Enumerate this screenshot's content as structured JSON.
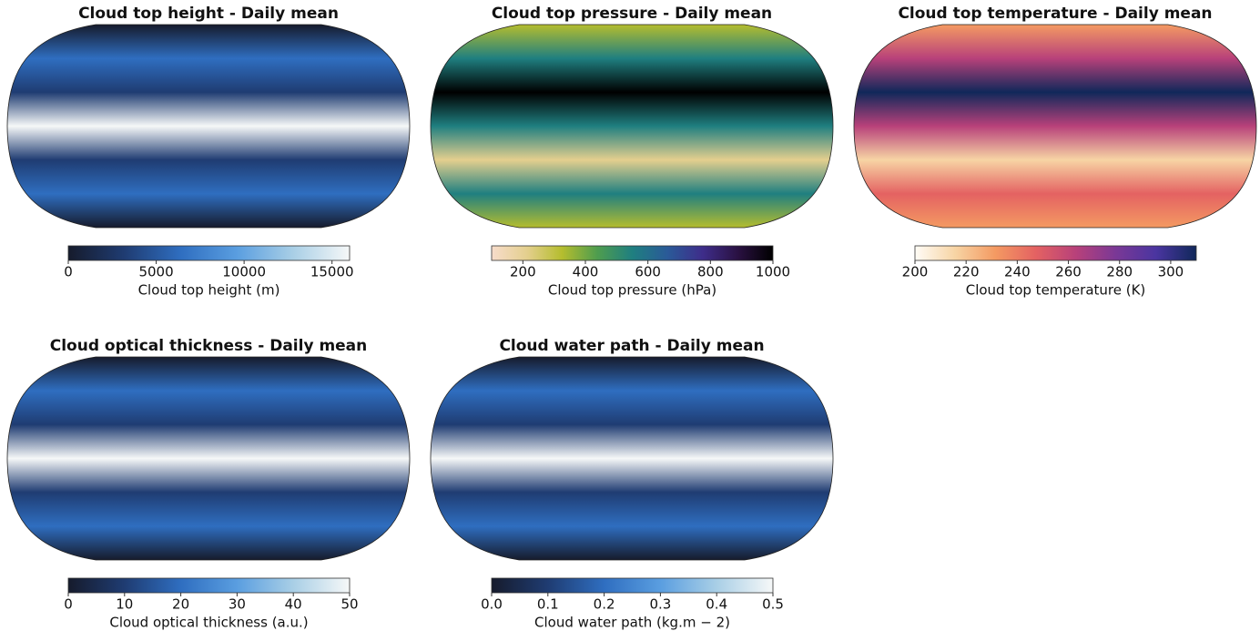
{
  "chart_data": [
    {
      "type": "map",
      "title": "Cloud top height - Daily mean",
      "colorbar_label": "Cloud top height (m)",
      "xlim": [
        0,
        16000
      ],
      "xticks": [
        0,
        5000,
        10000,
        15000
      ],
      "colormap": [
        "#161b2c",
        "#1f3c72",
        "#2f6ec0",
        "#5a9ee0",
        "#a9cfe6",
        "#f6f8f8"
      ]
    },
    {
      "type": "map",
      "title": "Cloud top pressure - Daily mean",
      "colorbar_label": "Cloud top pressure (hPa)",
      "xlim": [
        100,
        1000
      ],
      "xticks": [
        200,
        400,
        600,
        800,
        1000
      ],
      "colormap": [
        "#f7dccb",
        "#e4cf8e",
        "#b5bd2e",
        "#4f9d4e",
        "#1f7f80",
        "#2a5a98",
        "#3e2d8a",
        "#2a1142",
        "#000000"
      ]
    },
    {
      "type": "map",
      "title": "Cloud top temperature - Daily mean",
      "colorbar_label": "Cloud top temperature (K)",
      "xlim": [
        200,
        310
      ],
      "xticks": [
        200,
        220,
        240,
        260,
        280,
        300
      ],
      "colormap": [
        "#fffcf7",
        "#f7d4a4",
        "#f49a62",
        "#e46262",
        "#b8417a",
        "#7a3896",
        "#4a35a0",
        "#10285a"
      ]
    },
    {
      "type": "map",
      "title": "Cloud optical thickness - Daily mean",
      "colorbar_label": "Cloud optical thickness (a.u.)",
      "xlim": [
        0,
        50
      ],
      "xticks": [
        0,
        10,
        20,
        30,
        40,
        50
      ],
      "colormap": [
        "#161b2c",
        "#1f3c72",
        "#2f6ec0",
        "#5a9ee0",
        "#a9cfe6",
        "#f6f8f8"
      ]
    },
    {
      "type": "map",
      "title": "Cloud water path - Daily mean",
      "colorbar_label": "Cloud water path (kg.m − 2)",
      "xlim": [
        0,
        0.5
      ],
      "xticks": [
        {
          "value": 0,
          "label": "0.0"
        },
        0.1,
        0.2,
        0.3,
        0.4,
        0.5
      ],
      "colormap": [
        "#161b2c",
        "#1f3c72",
        "#2f6ec0",
        "#5a9ee0",
        "#a9cfe6",
        "#f6f8f8"
      ]
    }
  ]
}
